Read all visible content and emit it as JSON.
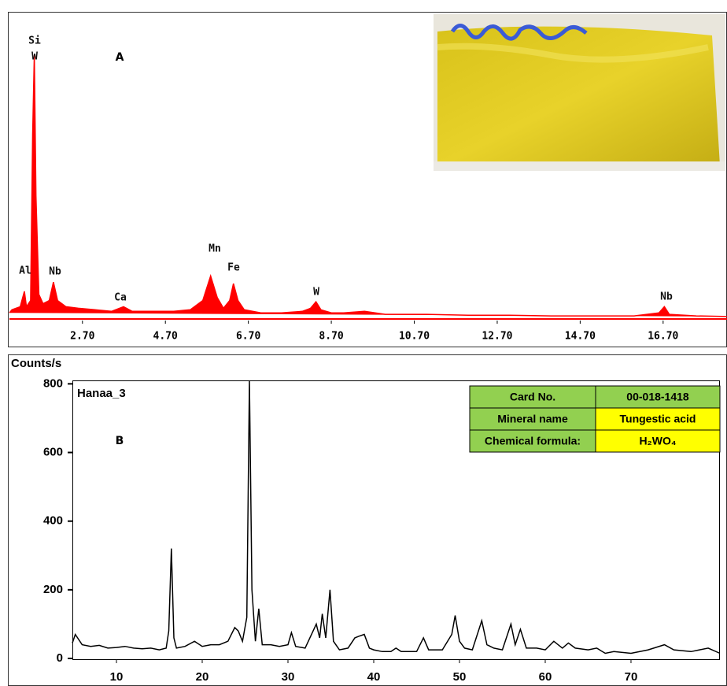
{
  "chart_data": [
    {
      "type": "area",
      "panel_label": "A",
      "color": "#ff0000",
      "peak_labels": [
        "Si",
        "W",
        "Al",
        "Nb",
        "Ca",
        "Mn",
        "Fe",
        "W",
        "Nb"
      ],
      "x": [
        0.94,
        1.0,
        1.2,
        1.3,
        1.35,
        1.45,
        1.5,
        1.54,
        1.58,
        1.65,
        1.75,
        1.9,
        2.0,
        2.1,
        2.3,
        2.6,
        3.0,
        3.4,
        3.69,
        3.9,
        4.4,
        4.9,
        5.3,
        5.6,
        5.79,
        5.95,
        6.1,
        6.25,
        6.34,
        6.45,
        6.6,
        7.0,
        7.5,
        8.0,
        8.2,
        8.33,
        8.45,
        8.7,
        9.0,
        9.5,
        10.0,
        11.0,
        12.0,
        13.0,
        14.0,
        15.0,
        16.0,
        16.6,
        16.73,
        16.85,
        17.5,
        18.24
      ],
      "values": [
        2,
        3,
        4,
        9,
        4,
        6,
        60,
        86,
        40,
        8,
        5,
        6,
        12,
        6,
        4,
        3.5,
        3,
        2.5,
        4,
        2.5,
        2.5,
        2.5,
        3,
        6,
        14,
        7,
        3.5,
        6,
        11.5,
        6,
        3,
        2,
        2,
        2.5,
        3.5,
        5.6,
        3,
        2,
        2,
        2.5,
        1.5,
        1.5,
        1.2,
        1.2,
        1,
        1,
        1,
        2,
        4,
        1.5,
        1,
        0.8
      ],
      "xlim": [
        0.94,
        18.24
      ],
      "ylim": [
        0,
        100
      ],
      "xticks": [
        {
          "value": 2.7,
          "label": "2.70"
        },
        {
          "value": 4.7,
          "label": "4.70"
        },
        {
          "value": 6.7,
          "label": "6.70"
        },
        {
          "value": 8.7,
          "label": "8.70"
        },
        {
          "value": 10.7,
          "label": "10.70"
        },
        {
          "value": 12.7,
          "label": "12.70"
        },
        {
          "value": 14.7,
          "label": "14.70"
        },
        {
          "value": 16.7,
          "label": "16.70"
        }
      ]
    },
    {
      "type": "line",
      "panel_label": "B",
      "sample_name": "Hanaa_3",
      "ylabel": "Counts/s",
      "color": "#000000",
      "x": [
        4.86,
        5.2,
        6,
        7,
        8,
        9,
        10,
        11,
        12,
        13,
        14,
        15,
        15.8,
        16.1,
        16.4,
        16.7,
        17.0,
        18,
        19.1,
        20,
        21,
        22,
        23,
        23.8,
        24.2,
        24.7,
        25.2,
        25.5,
        25.8,
        26.2,
        26.6,
        27.0,
        28,
        29,
        30,
        30.4,
        30.9,
        32,
        33.3,
        33.7,
        34.0,
        34.4,
        34.9,
        35.3,
        36,
        37,
        37.8,
        38.3,
        38.9,
        39.5,
        40,
        41,
        42,
        42.6,
        43.2,
        44,
        45,
        45.8,
        46.4,
        47,
        48,
        49.1,
        49.5,
        50.0,
        50.6,
        51.5,
        52.6,
        53.2,
        54,
        55,
        56.0,
        56.5,
        57.1,
        57.8,
        59,
        60,
        61,
        62,
        62.7,
        63.5,
        65,
        66,
        67,
        68,
        70,
        72,
        73.9,
        75,
        77,
        79,
        80.37
      ],
      "values": [
        45,
        70,
        40,
        35,
        38,
        30,
        32,
        35,
        30,
        28,
        30,
        25,
        30,
        80,
        320,
        60,
        30,
        35,
        50,
        35,
        40,
        40,
        50,
        90,
        80,
        50,
        120,
        810,
        200,
        50,
        145,
        40,
        40,
        35,
        40,
        75,
        35,
        30,
        100,
        60,
        130,
        60,
        200,
        50,
        25,
        30,
        60,
        65,
        70,
        30,
        25,
        20,
        20,
        30,
        20,
        20,
        20,
        60,
        25,
        25,
        25,
        70,
        125,
        50,
        30,
        25,
        110,
        40,
        30,
        25,
        100,
        40,
        85,
        30,
        30,
        25,
        50,
        30,
        45,
        30,
        25,
        30,
        15,
        20,
        15,
        25,
        40,
        25,
        20,
        30,
        15
      ],
      "xlim": [
        4.86,
        80.37
      ],
      "ylim": [
        0,
        810
      ],
      "xticks": [
        10,
        20,
        30,
        40,
        50,
        60,
        70
      ],
      "yticks": [
        0,
        200,
        400,
        600,
        800
      ],
      "card_table": {
        "rows": [
          [
            "Card No.",
            "00-018-1418"
          ],
          [
            "Mineral name",
            "Tungestic acid"
          ],
          [
            "Chemical formula:",
            "H₂WO₄"
          ]
        ]
      }
    }
  ]
}
